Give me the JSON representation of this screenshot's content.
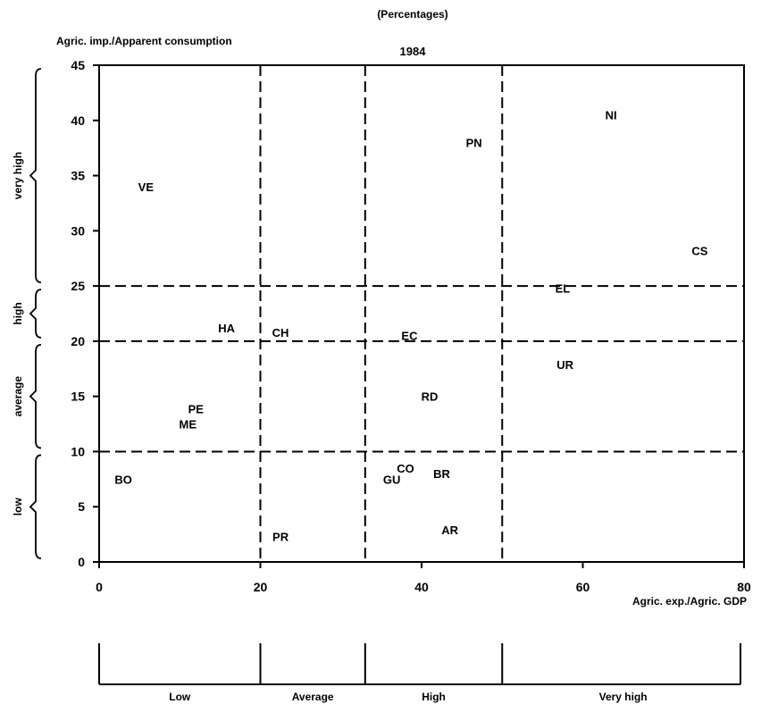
{
  "chart_data": {
    "type": "scatter",
    "subtitle": "(Percentages)",
    "title": "1984",
    "xlabel": "Agric. exp./Agric. GDP",
    "ylabel": "Agric. imp./Apparent consumption",
    "xlim": [
      0,
      80
    ],
    "ylim": [
      0,
      45
    ],
    "xticks": [
      0,
      20,
      40,
      60,
      80
    ],
    "yticks": [
      0,
      5,
      10,
      15,
      20,
      25,
      30,
      35,
      40,
      45
    ],
    "grid": false,
    "dashed_vertical_lines": [
      20,
      33,
      50
    ],
    "dashed_horizontal_lines": [
      10,
      20,
      25
    ],
    "points": [
      {
        "label": "VE",
        "x": 5.8,
        "y": 34
      },
      {
        "label": "PN",
        "x": 46.5,
        "y": 38
      },
      {
        "label": "NI",
        "x": 63.5,
        "y": 40.5
      },
      {
        "label": "CS",
        "x": 74.5,
        "y": 28.2
      },
      {
        "label": "EL",
        "x": 57.5,
        "y": 24.8
      },
      {
        "label": "HA",
        "x": 15.8,
        "y": 21.2
      },
      {
        "label": "CH",
        "x": 22.5,
        "y": 20.8
      },
      {
        "label": "EC",
        "x": 38.5,
        "y": 20.5
      },
      {
        "label": "UR",
        "x": 57.8,
        "y": 17.9
      },
      {
        "label": "RD",
        "x": 41,
        "y": 15
      },
      {
        "label": "PE",
        "x": 12,
        "y": 13.9
      },
      {
        "label": "ME",
        "x": 11,
        "y": 12.5
      },
      {
        "label": "BO",
        "x": 3,
        "y": 7.5
      },
      {
        "label": "CO",
        "x": 38,
        "y": 8.5
      },
      {
        "label": "GU",
        "x": 36.3,
        "y": 7.5
      },
      {
        "label": "BR",
        "x": 42.5,
        "y": 8
      },
      {
        "label": "AR",
        "x": 43.5,
        "y": 2.9
      },
      {
        "label": "PR",
        "x": 22.5,
        "y": 2.3
      }
    ],
    "y_brackets": [
      {
        "label": "low",
        "range": [
          0,
          10
        ]
      },
      {
        "label": "average",
        "range": [
          10,
          20
        ]
      },
      {
        "label": "high",
        "range": [
          20,
          25
        ]
      },
      {
        "label": "very high",
        "range": [
          25,
          45
        ]
      }
    ],
    "x_brackets": [
      {
        "label": "Low",
        "range": [
          0,
          20
        ]
      },
      {
        "label": "Average",
        "range": [
          20,
          33
        ]
      },
      {
        "label": "High",
        "range": [
          33,
          50
        ]
      },
      {
        "label": "Very high",
        "range": [
          50,
          80
        ]
      }
    ]
  }
}
